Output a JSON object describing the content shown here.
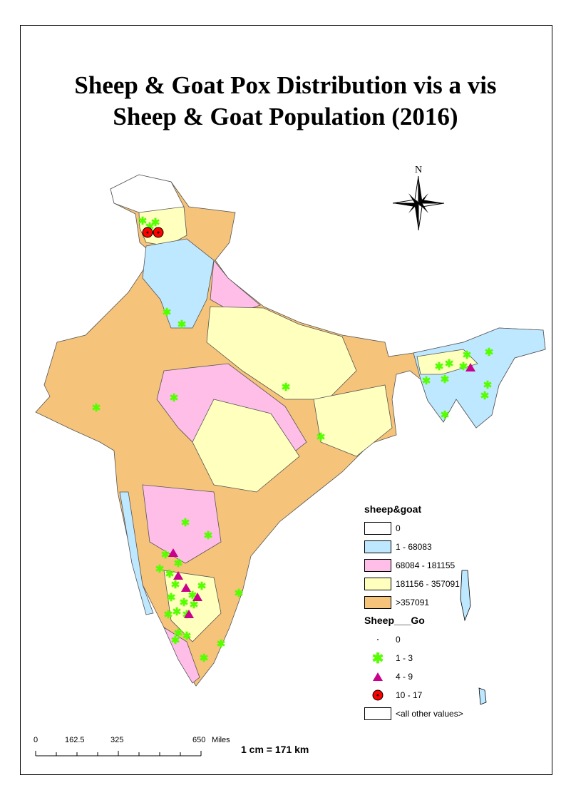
{
  "title_line1": "Sheep & Goat Pox Distribution vis a vis",
  "title_line2": "Sheep & Goat Population (2016)",
  "north_arrow": {
    "label": "N"
  },
  "legend": {
    "population_heading": "sheep&goat",
    "population_classes": [
      {
        "label": "0",
        "color": "#ffffff"
      },
      {
        "label": "1 - 68083",
        "color": "#bee8ff"
      },
      {
        "label": "68084 - 181155",
        "color": "#ffbee8"
      },
      {
        "label": "181156 - 357091",
        "color": "#ffffbe"
      },
      {
        "label": ">357091",
        "color": "#f5c37a"
      }
    ],
    "outbreak_heading": "Sheep___Go",
    "outbreak_classes": [
      {
        "label": "0",
        "symbol": "dot"
      },
      {
        "label": "1 - 3",
        "symbol": "green-asterisk",
        "color": "#55ff00"
      },
      {
        "label": "4 - 9",
        "symbol": "magenta-triangle",
        "color": "#c8008c"
      },
      {
        "label": "10 - 17",
        "symbol": "red-circle",
        "color": "#ff0000"
      },
      {
        "label": "<all other values>",
        "symbol": "box"
      }
    ]
  },
  "scale_bar": {
    "ticks": [
      "0",
      "162.5",
      "325",
      "650"
    ],
    "unit": "Miles",
    "ratio_text": "1 cm = 171 km"
  }
}
